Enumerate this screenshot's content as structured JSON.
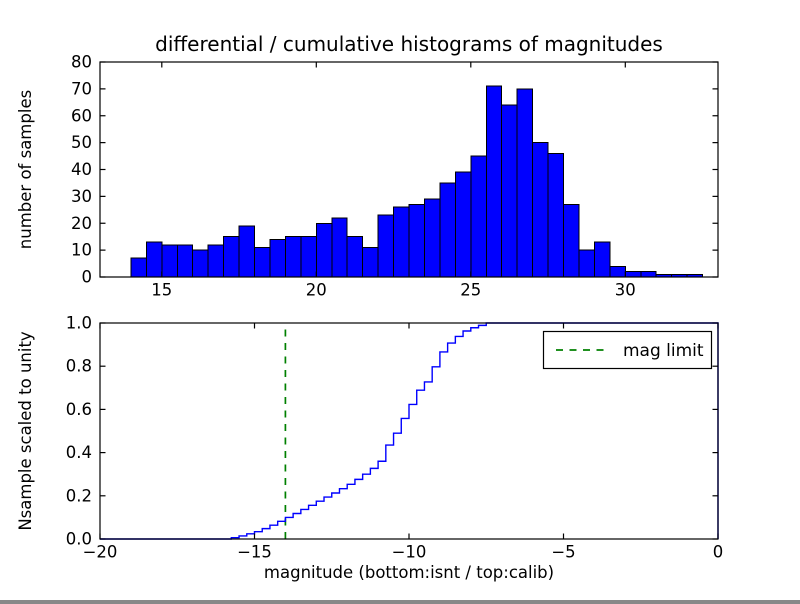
{
  "figure": {
    "background": "#ffffff"
  },
  "colors": {
    "bar_fill": "#0000ff",
    "bar_edge": "#000000",
    "step_line": "#0000ff",
    "limit_line": "#008000",
    "axis": "#000000",
    "text": "#000000"
  },
  "chart_data": [
    {
      "type": "bar",
      "subplot": "top",
      "title": "differential / cumulative histograms of magnitudes",
      "xlabel": "",
      "ylabel": "number of samples",
      "xlim": [
        13,
        33
      ],
      "ylim": [
        0,
        80
      ],
      "xticks": [
        15,
        20,
        25,
        30
      ],
      "xtick_labels": [
        "15",
        "20",
        "25",
        "30"
      ],
      "yticks": [
        0,
        10,
        20,
        30,
        40,
        50,
        60,
        70,
        80
      ],
      "ytick_labels": [
        "0",
        "10",
        "20",
        "30",
        "40",
        "50",
        "60",
        "70",
        "80"
      ],
      "grid": false,
      "bin_start": 14.0,
      "bin_width": 0.5,
      "values": [
        7,
        13,
        12,
        12,
        10,
        12,
        15,
        19,
        11,
        14,
        15,
        15,
        20,
        22,
        15,
        11,
        23,
        26,
        27,
        29,
        35,
        39,
        45,
        71,
        64,
        70,
        50,
        46,
        27,
        10,
        13,
        4,
        2,
        2,
        1,
        1,
        1
      ]
    },
    {
      "type": "line",
      "subplot": "bottom",
      "line_style": "steps",
      "ylabel": "Nsample scaled to unity",
      "xlabel": "magnitude (bottom:isnt / top:calib)",
      "xlim": [
        -20,
        0
      ],
      "ylim": [
        0.0,
        1.0
      ],
      "xticks": [
        -20,
        -15,
        -10,
        -5,
        0
      ],
      "xtick_labels": [
        "−20",
        "−15",
        "−10",
        "−5",
        "0"
      ],
      "yticks": [
        0.0,
        0.2,
        0.4,
        0.6,
        0.8,
        1.0
      ],
      "ytick_labels": [
        "0.0",
        "0.2",
        "0.4",
        "0.6",
        "0.8",
        "1.0"
      ],
      "grid": false,
      "start_value": 0.0,
      "steps": [
        [
          -15.75,
          0.006
        ],
        [
          -15.5,
          0.014
        ],
        [
          -15.25,
          0.024
        ],
        [
          -15.0,
          0.034
        ],
        [
          -14.75,
          0.048
        ],
        [
          -14.5,
          0.064
        ],
        [
          -14.25,
          0.082
        ],
        [
          -14.0,
          0.1
        ],
        [
          -13.75,
          0.118
        ],
        [
          -13.5,
          0.137
        ],
        [
          -13.25,
          0.156
        ],
        [
          -13.0,
          0.175
        ],
        [
          -12.75,
          0.194
        ],
        [
          -12.5,
          0.213
        ],
        [
          -12.25,
          0.233
        ],
        [
          -12.0,
          0.253
        ],
        [
          -11.75,
          0.276
        ],
        [
          -11.5,
          0.3
        ],
        [
          -11.25,
          0.327
        ],
        [
          -11.0,
          0.36
        ],
        [
          -10.75,
          0.435
        ],
        [
          -10.5,
          0.49
        ],
        [
          -10.25,
          0.558
        ],
        [
          -10.0,
          0.623
        ],
        [
          -9.75,
          0.689
        ],
        [
          -9.5,
          0.727
        ],
        [
          -9.25,
          0.797
        ],
        [
          -9.0,
          0.866
        ],
        [
          -8.75,
          0.907
        ],
        [
          -8.5,
          0.938
        ],
        [
          -8.25,
          0.963
        ],
        [
          -8.0,
          0.978
        ],
        [
          -7.75,
          0.989
        ],
        [
          -7.5,
          1.0
        ]
      ],
      "mag_limit": -14,
      "legend_label": "mag limit",
      "legend_position": "upper right"
    }
  ]
}
